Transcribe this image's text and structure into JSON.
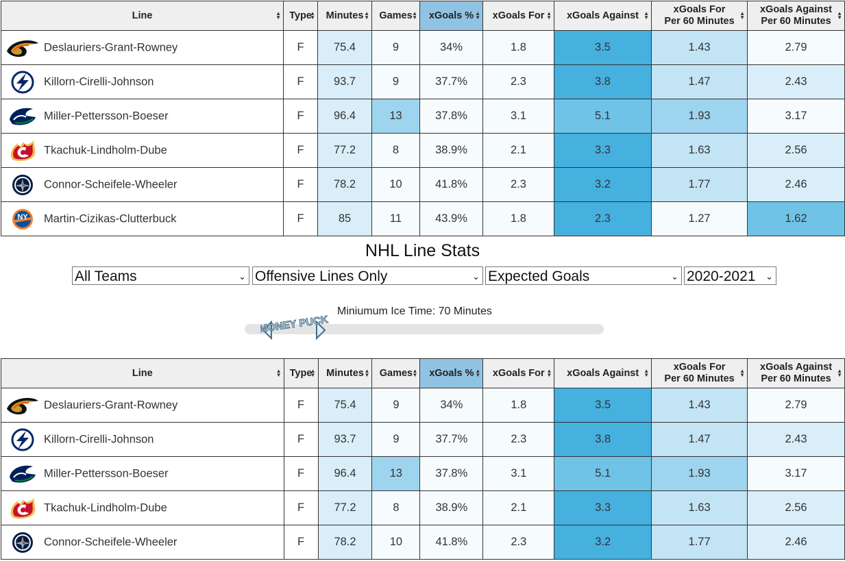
{
  "page": {
    "title": "NHL Line Stats",
    "filters": {
      "team": "All Teams",
      "line_type": "Offensive Lines Only",
      "metric": "Expected Goals",
      "season": "2020-2021"
    },
    "slider": {
      "label": "Miniumum Ice Time: 70 Minutes",
      "value_minutes": 70,
      "handle_logo_text": "MONEY PUCK"
    }
  },
  "table": {
    "headers": [
      "Line",
      "Type",
      "Minutes",
      "Games",
      "xGoals %",
      "xGoals For",
      "xGoals Against",
      "xGoals For\nPer 60 Minutes",
      "xGoals Against\nPer 60 Minutes"
    ],
    "sorted_column": "xGoals %",
    "rows_top": [
      {
        "team_icon": "ducks-logo-icon",
        "line": "Deslauriers-Grant-Rowney",
        "type": "F",
        "minutes": "75.4",
        "games": "9",
        "xg_pct": "34%",
        "xgf": "1.8",
        "xga": "3.5",
        "xgf60": "1.43",
        "xga60": "2.79"
      },
      {
        "team_icon": "lightning-logo-icon",
        "line": "Killorn-Cirelli-Johnson",
        "type": "F",
        "minutes": "93.7",
        "games": "9",
        "xg_pct": "37.7%",
        "xgf": "2.3",
        "xga": "3.8",
        "xgf60": "1.47",
        "xga60": "2.43"
      },
      {
        "team_icon": "canucks-logo-icon",
        "line": "Miller-Pettersson-Boeser",
        "type": "F",
        "minutes": "96.4",
        "games": "13",
        "xg_pct": "37.8%",
        "xgf": "3.1",
        "xga": "5.1",
        "xgf60": "1.93",
        "xga60": "3.17"
      },
      {
        "team_icon": "flames-logo-icon",
        "line": "Tkachuk-Lindholm-Dube",
        "type": "F",
        "minutes": "77.2",
        "games": "8",
        "xg_pct": "38.9%",
        "xgf": "2.1",
        "xga": "3.3",
        "xgf60": "1.63",
        "xga60": "2.56"
      },
      {
        "team_icon": "jets-logo-icon",
        "line": "Connor-Scheifele-Wheeler",
        "type": "F",
        "minutes": "78.2",
        "games": "10",
        "xg_pct": "41.8%",
        "xgf": "2.3",
        "xga": "3.2",
        "xgf60": "1.77",
        "xga60": "2.46"
      },
      {
        "team_icon": "islanders-logo-icon",
        "line": "Martin-Cizikas-Clutterbuck",
        "type": "F",
        "minutes": "85",
        "games": "11",
        "xg_pct": "43.9%",
        "xgf": "1.8",
        "xga": "2.3",
        "xgf60": "1.27",
        "xga60": "1.62"
      }
    ],
    "rows_bottom": [
      {
        "team_icon": "ducks-logo-icon",
        "line": "Deslauriers-Grant-Rowney",
        "type": "F",
        "minutes": "75.4",
        "games": "9",
        "xg_pct": "34%",
        "xgf": "1.8",
        "xga": "3.5",
        "xgf60": "1.43",
        "xga60": "2.79"
      },
      {
        "team_icon": "lightning-logo-icon",
        "line": "Killorn-Cirelli-Johnson",
        "type": "F",
        "minutes": "93.7",
        "games": "9",
        "xg_pct": "37.7%",
        "xgf": "2.3",
        "xga": "3.8",
        "xgf60": "1.47",
        "xga60": "2.43"
      },
      {
        "team_icon": "canucks-logo-icon",
        "line": "Miller-Pettersson-Boeser",
        "type": "F",
        "minutes": "96.4",
        "games": "13",
        "xg_pct": "37.8%",
        "xgf": "3.1",
        "xga": "5.1",
        "xgf60": "1.93",
        "xga60": "3.17"
      },
      {
        "team_icon": "flames-logo-icon",
        "line": "Tkachuk-Lindholm-Dube",
        "type": "F",
        "minutes": "77.2",
        "games": "8",
        "xg_pct": "38.9%",
        "xgf": "2.1",
        "xga": "3.3",
        "xgf60": "1.63",
        "xga60": "2.56"
      },
      {
        "team_icon": "jets-logo-icon",
        "line": "Connor-Scheifele-Wheeler",
        "type": "F",
        "minutes": "78.2",
        "games": "10",
        "xg_pct": "41.8%",
        "xgf": "2.3",
        "xga": "3.2",
        "xgf60": "1.77",
        "xga60": "2.46"
      }
    ]
  },
  "colors": {
    "header_bg": "#efefef",
    "sorted_header_bg": "#90c3e3",
    "heat_scale": [
      "#f6fbfe",
      "#d9eef8",
      "#c3e4f4",
      "#9fd4ee",
      "#6ec3e7",
      "#46b0df"
    ]
  }
}
